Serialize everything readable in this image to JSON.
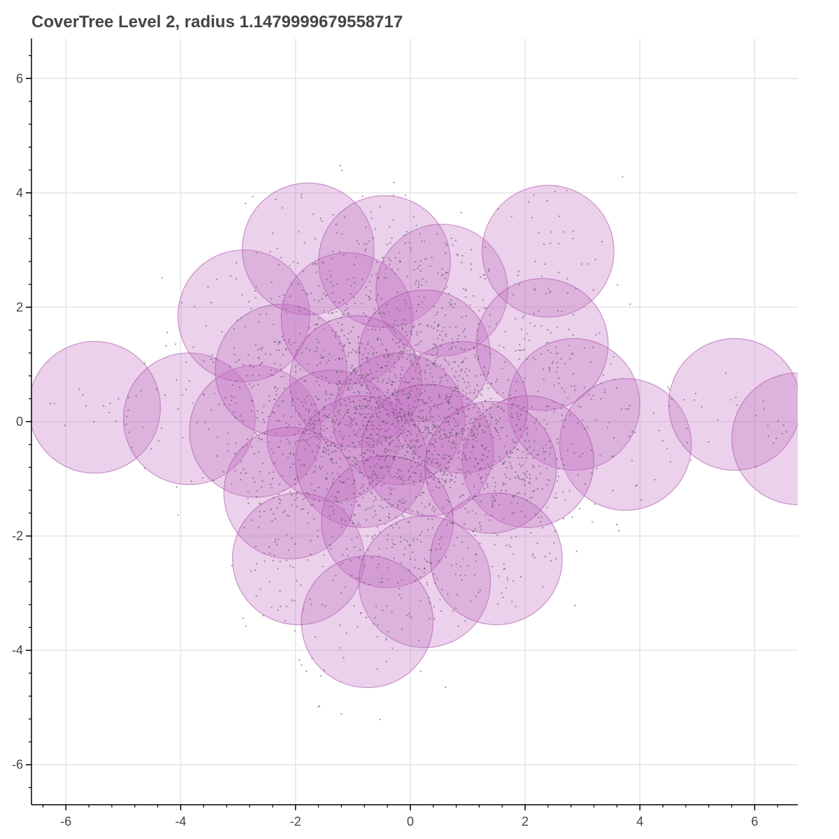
{
  "chart_data": {
    "type": "scatter",
    "title": "CoverTree Level 2, radius 1.1479999679558717",
    "xlabel": "",
    "ylabel": "",
    "xlim": [
      -6.6,
      6.75
    ],
    "ylim": [
      -6.7,
      6.7
    ],
    "x_ticks": [
      -6,
      -4,
      -2,
      0,
      2,
      4,
      6
    ],
    "y_ticks": [
      -6,
      -4,
      -2,
      0,
      2,
      4,
      6
    ],
    "x_tick_labels": [
      "-6",
      "-4",
      "-2",
      "0",
      "2",
      "4",
      "6"
    ],
    "y_tick_labels": [
      "-6",
      "-4",
      "-2",
      "0",
      "2",
      "4",
      "6"
    ],
    "grid": true,
    "radius": 1.1479999679558717,
    "circle_color": "#c071c0",
    "circle_fill_opacity": 0.32,
    "point_color": "#555555",
    "circle_centers": [
      {
        "x": -5.5,
        "y": 0.25
      },
      {
        "x": -3.85,
        "y": 0.05
      },
      {
        "x": -2.7,
        "y": -0.17
      },
      {
        "x": -2.9,
        "y": 1.85
      },
      {
        "x": -2.25,
        "y": 0.9
      },
      {
        "x": -1.78,
        "y": 3.02
      },
      {
        "x": -0.45,
        "y": 2.8
      },
      {
        "x": -1.1,
        "y": 1.8
      },
      {
        "x": 0.55,
        "y": 2.3
      },
      {
        "x": 2.4,
        "y": 2.98
      },
      {
        "x": -0.95,
        "y": 0.7
      },
      {
        "x": 0.25,
        "y": 1.15
      },
      {
        "x": 2.3,
        "y": 1.35
      },
      {
        "x": 2.85,
        "y": 0.3
      },
      {
        "x": 3.75,
        "y": -0.4
      },
      {
        "x": 5.65,
        "y": 0.3
      },
      {
        "x": 6.75,
        "y": -0.3
      },
      {
        "x": -1.35,
        "y": -0.25
      },
      {
        "x": -0.2,
        "y": 0.05
      },
      {
        "x": 0.9,
        "y": 0.25
      },
      {
        "x": 2.05,
        "y": -0.7
      },
      {
        "x": -2.1,
        "y": -1.25
      },
      {
        "x": -0.85,
        "y": -0.7
      },
      {
        "x": 0.3,
        "y": -0.5
      },
      {
        "x": 1.4,
        "y": -0.8
      },
      {
        "x": -1.95,
        "y": -2.4
      },
      {
        "x": -0.4,
        "y": -1.75
      },
      {
        "x": 0.25,
        "y": -2.8
      },
      {
        "x": 1.5,
        "y": -2.4
      },
      {
        "x": -0.75,
        "y": -3.5
      }
    ]
  }
}
